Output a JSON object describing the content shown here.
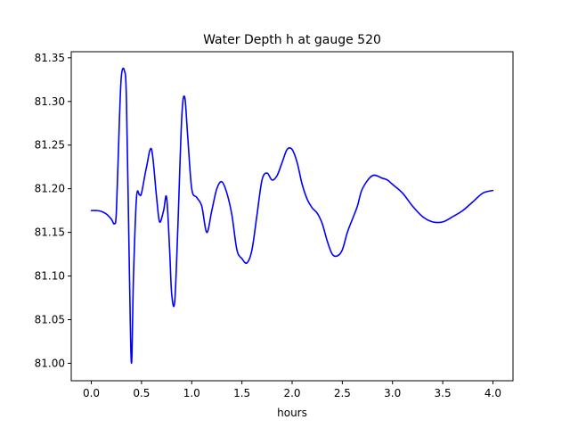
{
  "chart_data": {
    "type": "line",
    "title": "Water Depth h at gauge 520",
    "xlabel": "hours",
    "ylabel": "",
    "xlim": [
      -0.2,
      4.2
    ],
    "ylim": [
      80.98,
      81.357
    ],
    "xticks": [
      0.0,
      0.5,
      1.0,
      1.5,
      2.0,
      2.5,
      3.0,
      3.5,
      4.0
    ],
    "xtick_labels": [
      "0.0",
      "0.5",
      "1.0",
      "1.5",
      "2.0",
      "2.5",
      "3.0",
      "3.5",
      "4.0"
    ],
    "yticks": [
      81.0,
      81.05,
      81.1,
      81.15,
      81.2,
      81.25,
      81.3,
      81.35
    ],
    "ytick_labels": [
      "81.00",
      "81.05",
      "81.10",
      "81.15",
      "81.20",
      "81.25",
      "81.30",
      "81.35"
    ],
    "grid": false,
    "series": [
      {
        "color": "#0000ff",
        "x": [
          0.0,
          0.05,
          0.1,
          0.15,
          0.2,
          0.23,
          0.25,
          0.28,
          0.3,
          0.33,
          0.35,
          0.38,
          0.4,
          0.42,
          0.45,
          0.48,
          0.5,
          0.55,
          0.6,
          0.65,
          0.68,
          0.72,
          0.75,
          0.78,
          0.8,
          0.83,
          0.86,
          0.9,
          0.93,
          0.96,
          1.0,
          1.05,
          1.1,
          1.15,
          1.2,
          1.25,
          1.3,
          1.35,
          1.4,
          1.45,
          1.5,
          1.55,
          1.6,
          1.65,
          1.7,
          1.75,
          1.8,
          1.85,
          1.9,
          1.95,
          2.0,
          2.05,
          2.1,
          2.15,
          2.2,
          2.25,
          2.3,
          2.35,
          2.4,
          2.45,
          2.5,
          2.55,
          2.6,
          2.65,
          2.7,
          2.8,
          2.9,
          2.95,
          3.0,
          3.1,
          3.2,
          3.3,
          3.4,
          3.5,
          3.6,
          3.7,
          3.8,
          3.9,
          4.0
        ],
        "y": [
          81.175,
          81.175,
          81.174,
          81.171,
          81.165,
          81.16,
          81.175,
          81.28,
          81.33,
          81.335,
          81.3,
          81.1,
          81.0,
          81.1,
          81.19,
          81.193,
          81.195,
          81.225,
          81.245,
          81.19,
          81.162,
          81.175,
          81.19,
          81.13,
          81.08,
          81.07,
          81.15,
          81.28,
          81.305,
          81.26,
          81.2,
          81.19,
          81.18,
          81.15,
          81.175,
          81.2,
          81.208,
          81.195,
          81.17,
          81.13,
          81.12,
          81.115,
          81.13,
          81.17,
          81.21,
          81.218,
          81.21,
          81.215,
          81.23,
          81.245,
          81.245,
          81.23,
          81.205,
          81.188,
          81.178,
          81.172,
          81.16,
          81.14,
          81.125,
          81.123,
          81.13,
          81.15,
          81.165,
          81.18,
          81.2,
          81.215,
          81.212,
          81.21,
          81.205,
          81.195,
          81.18,
          81.168,
          81.162,
          81.162,
          81.168,
          81.175,
          81.185,
          81.195,
          81.198
        ]
      }
    ]
  }
}
